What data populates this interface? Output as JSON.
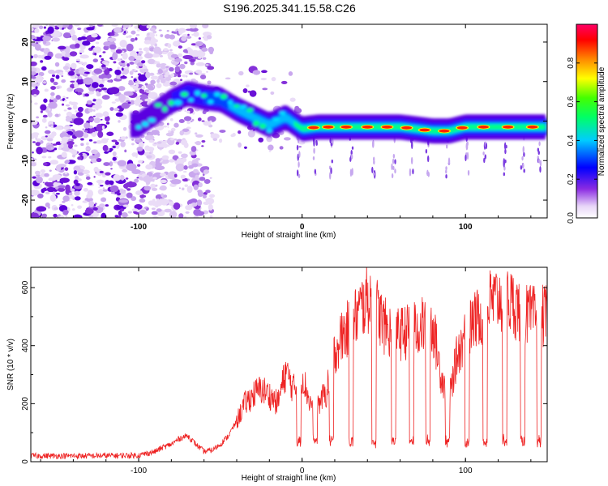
{
  "title": "S196.2025.341.15.58.C26",
  "chart_data": [
    {
      "type": "heatmap",
      "name": "spectrogram",
      "xlabel": "Height of straight line (km)",
      "ylabel": "Frequency (Hz)",
      "xlim": [
        -166,
        150
      ],
      "ylim": [
        -24.5,
        24.5
      ],
      "xticks": [
        -100,
        0,
        100
      ],
      "yticks": [
        -20,
        -10,
        0,
        10,
        20
      ],
      "colorbar": {
        "label": "Normalized spectral amplitude",
        "range": [
          0.0,
          1.0
        ],
        "ticks": [
          0.0,
          0.2,
          0.4,
          0.6,
          0.8
        ],
        "tick_labels": [
          "0.0",
          "0.2",
          "0.4",
          "0.6",
          "0.8"
        ]
      },
      "ridge": {
        "x": [
          -100,
          -90,
          -80,
          -70,
          -60,
          -50,
          -40,
          -30,
          -20,
          -10,
          0,
          10,
          20,
          40,
          60,
          80,
          90,
          100,
          120,
          150
        ],
        "y": [
          -1,
          2,
          5,
          7,
          6,
          5.5,
          3,
          1,
          -1,
          1,
          -2,
          -1.5,
          -1.5,
          -1.5,
          -1.5,
          -2.5,
          -2.5,
          -1.5,
          -1.5,
          -1.5
        ]
      },
      "hot_spots_x": [
        7,
        16,
        27,
        40,
        52,
        64,
        75,
        87,
        98,
        111,
        126,
        141
      ]
    },
    {
      "type": "line",
      "name": "snr",
      "xlabel": "Height of straight line (km)",
      "ylabel": "SNR (10 * v/v)",
      "xlim": [
        -166,
        150
      ],
      "ylim": [
        0,
        670
      ],
      "xticks": [
        -100,
        0,
        100
      ],
      "yticks": [
        0,
        200,
        400,
        600
      ],
      "color": "#ee2222",
      "series": [
        {
          "name": "SNR",
          "x": [
            -166,
            -130,
            -100,
            -90,
            -85,
            -80,
            -75,
            -70,
            -65,
            -60,
            -55,
            -50,
            -45,
            -40,
            -35,
            -30,
            -25,
            -20,
            -15,
            -10,
            -5,
            0,
            5,
            10,
            15,
            20,
            25,
            30,
            35,
            40,
            45,
            50,
            55,
            60,
            65,
            70,
            75,
            80,
            85,
            90,
            95,
            100,
            105,
            110,
            115,
            120,
            125,
            130,
            135,
            140,
            145,
            150
          ],
          "values": [
            20,
            20,
            22,
            35,
            50,
            60,
            80,
            90,
            60,
            35,
            40,
            60,
            90,
            140,
            200,
            230,
            250,
            230,
            200,
            310,
            250,
            300,
            200,
            200,
            240,
            380,
            440,
            470,
            520,
            560,
            540,
            470,
            440,
            440,
            450,
            460,
            470,
            470,
            300,
            220,
            370,
            440,
            480,
            510,
            550,
            560,
            560,
            540,
            510,
            500,
            500,
            500
          ]
        }
      ],
      "dropouts_x": [
        -2,
        8,
        18,
        30,
        44,
        56,
        67,
        77,
        89,
        101,
        112,
        124,
        135,
        145
      ],
      "dropout_level": 60
    }
  ]
}
